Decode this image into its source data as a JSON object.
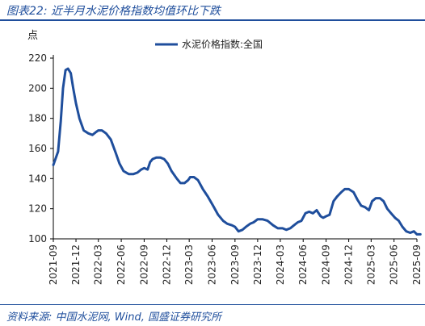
{
  "header": {
    "title": "图表22:  近半月水泥价格指数均值环比下跌"
  },
  "footer": {
    "source": "资料来源:  中国水泥网, Wind, 国盛证券研究所"
  },
  "colors": {
    "line": "#1f4e9c",
    "axis": "#000000"
  },
  "chart_data": {
    "type": "line",
    "ylabel": "点",
    "ylim": [
      100,
      220
    ],
    "yticks": [
      100,
      120,
      140,
      160,
      180,
      200,
      220
    ],
    "legend": {
      "position": "top-right"
    },
    "grid": false,
    "xlim": [
      "2021-09",
      "2025-09"
    ],
    "xticks": [
      "2021-09",
      "2021-12",
      "2022-03",
      "2022-06",
      "2022-09",
      "2022-12",
      "2023-03",
      "2023-06",
      "2023-09",
      "2023-12",
      "2024-03",
      "2024-06",
      "2024-09",
      "2024-12",
      "2025-03",
      "2025-06",
      "2025-09"
    ],
    "series": [
      {
        "name": "水泥价格指数:全国",
        "x": [
          "2021-09-01",
          "2021-09-20",
          "2021-10-01",
          "2021-10-10",
          "2021-10-20",
          "2021-10-30",
          "2021-11-10",
          "2021-11-20",
          "2021-12-01",
          "2021-12-15",
          "2022-01-01",
          "2022-01-20",
          "2022-02-05",
          "2022-02-20",
          "2022-03-01",
          "2022-03-15",
          "2022-04-01",
          "2022-04-20",
          "2022-05-10",
          "2022-05-25",
          "2022-06-10",
          "2022-07-01",
          "2022-07-20",
          "2022-08-05",
          "2022-08-20",
          "2022-09-01",
          "2022-09-15",
          "2022-09-25",
          "2022-10-05",
          "2022-10-20",
          "2022-11-05",
          "2022-11-20",
          "2022-12-05",
          "2022-12-20",
          "2023-01-10",
          "2023-01-25",
          "2023-02-10",
          "2023-02-25",
          "2023-03-05",
          "2023-03-20",
          "2023-04-05",
          "2023-04-25",
          "2023-05-15",
          "2023-06-05",
          "2023-06-25",
          "2023-07-15",
          "2023-08-01",
          "2023-08-20",
          "2023-09-01",
          "2023-09-15",
          "2023-10-01",
          "2023-10-15",
          "2023-11-01",
          "2023-11-15",
          "2023-12-01",
          "2023-12-20",
          "2024-01-10",
          "2024-02-01",
          "2024-02-20",
          "2024-03-10",
          "2024-03-25",
          "2024-04-10",
          "2024-04-25",
          "2024-05-10",
          "2024-05-25",
          "2024-06-10",
          "2024-06-25",
          "2024-07-10",
          "2024-07-25",
          "2024-08-10",
          "2024-08-20",
          "2024-09-01",
          "2024-09-15",
          "2024-10-01",
          "2024-10-15",
          "2024-11-01",
          "2024-11-15",
          "2024-12-01",
          "2024-12-20",
          "2025-01-05",
          "2025-01-20",
          "2025-02-05",
          "2025-02-20",
          "2025-03-05",
          "2025-03-20",
          "2025-04-05",
          "2025-04-20",
          "2025-05-05",
          "2025-05-20",
          "2025-06-05",
          "2025-06-20",
          "2025-07-05",
          "2025-07-20",
          "2025-08-05",
          "2025-08-20",
          "2025-09-01",
          "2025-09-15"
        ],
        "values": [
          149,
          158,
          178,
          200,
          212,
          213,
          210,
          200,
          190,
          180,
          172,
          170,
          169,
          171,
          172,
          172,
          170,
          166,
          157,
          150,
          145,
          143,
          143,
          144,
          146,
          147,
          146,
          151,
          153,
          154,
          154,
          153,
          150,
          145,
          140,
          137,
          137,
          139,
          141,
          141,
          139,
          133,
          128,
          122,
          116,
          112,
          110,
          109,
          108,
          105,
          106,
          108,
          110,
          111,
          113,
          113,
          112,
          109,
          107,
          107,
          106,
          107,
          109,
          111,
          112,
          117,
          118,
          117,
          119,
          115,
          114,
          115,
          116,
          125,
          128,
          131,
          133,
          133,
          131,
          126,
          122,
          121,
          119,
          125,
          127,
          127,
          125,
          120,
          117,
          114,
          112,
          108,
          105,
          104,
          105,
          103,
          103
        ]
      }
    ]
  }
}
